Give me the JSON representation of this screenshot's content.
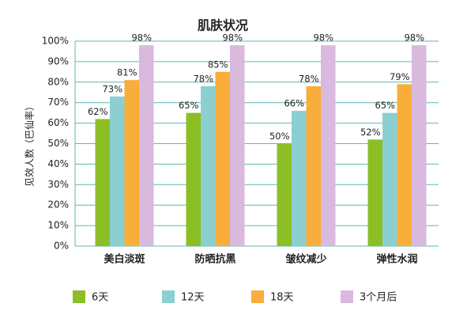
{
  "chart_data": {
    "type": "bar",
    "title": "肌肤状况",
    "y_label": "见效人数（巴仙率）",
    "categories": [
      "美白淡斑",
      "防晒抗黑",
      "皱纹减少",
      "弹性水润"
    ],
    "series": [
      {
        "name": "6天",
        "color": "#8cbf26",
        "values": [
          62,
          65,
          50,
          52
        ],
        "value_labels": [
          "62%",
          "65%",
          "50%",
          "52%"
        ]
      },
      {
        "name": "12天",
        "color": "#8ccfd0",
        "values": [
          73,
          78,
          66,
          65
        ],
        "value_labels": [
          "73%",
          "78%",
          "66%",
          "65%"
        ]
      },
      {
        "name": "18天",
        "color": "#f9ad3a",
        "values": [
          81,
          85,
          78,
          79
        ],
        "value_labels": [
          "81%",
          "85%",
          "78%",
          "79%"
        ]
      },
      {
        "name": "3个月后",
        "color": "#d9b9dd",
        "values": [
          98,
          98,
          98,
          98
        ],
        "value_labels": [
          "98%",
          "98%",
          "98%",
          "98%"
        ]
      }
    ],
    "ylim": [
      0,
      100
    ],
    "yticks": [
      {
        "value": 0,
        "label": "0%"
      },
      {
        "value": 10,
        "label": "10%"
      },
      {
        "value": 20,
        "label": "20%"
      },
      {
        "value": 30,
        "label": "30%"
      },
      {
        "value": 40,
        "label": "40%"
      },
      {
        "value": 50,
        "label": "50%"
      },
      {
        "value": 60,
        "label": "60%"
      },
      {
        "value": 70,
        "label": "70%"
      },
      {
        "value": 80,
        "label": "80%"
      },
      {
        "value": 90,
        "label": "90%"
      },
      {
        "value": 100,
        "label": "100%"
      }
    ],
    "grid": true
  }
}
